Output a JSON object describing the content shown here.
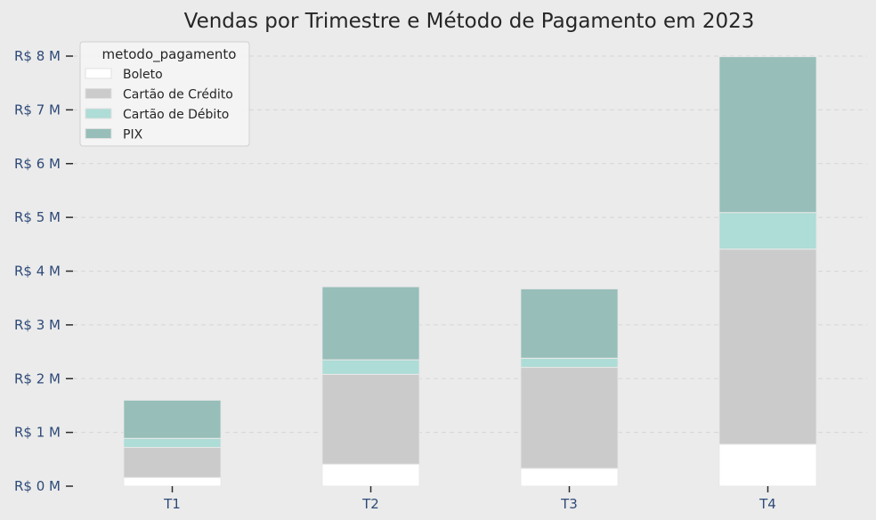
{
  "chart_data": {
    "type": "bar",
    "stacked": true,
    "title": "Vendas por Trimestre e Método de Pagamento em 2023",
    "xlabel": "",
    "ylabel": "",
    "categories": [
      "T1",
      "T2",
      "T3",
      "T4"
    ],
    "ylim": [
      0,
      8000000
    ],
    "yticks": [
      0,
      1000000,
      2000000,
      3000000,
      4000000,
      5000000,
      6000000,
      7000000,
      8000000
    ],
    "ytick_labels": [
      "R$ 0 M",
      "R$ 1 M",
      "R$ 2 M",
      "R$ 3 M",
      "R$ 4 M",
      "R$ 5 M",
      "R$ 6 M",
      "R$ 7 M",
      "R$ 8 M"
    ],
    "grid": true,
    "legend": {
      "title": "metodo_pagamento",
      "placement": "top-left"
    },
    "series": [
      {
        "name": "Boleto",
        "color": "#FFFFFF",
        "values": [
          160000,
          410000,
          330000,
          780000
        ]
      },
      {
        "name": "Cartão de Crédito",
        "color": "#CBCBCB",
        "values": [
          560000,
          1670000,
          1880000,
          3630000
        ]
      },
      {
        "name": "Cartão de Débito",
        "color": "#AEDCD6",
        "values": [
          170000,
          270000,
          170000,
          680000
        ]
      },
      {
        "name": "PIX",
        "color": "#97BEB9",
        "values": [
          710000,
          1360000,
          1290000,
          2900000
        ]
      }
    ]
  }
}
